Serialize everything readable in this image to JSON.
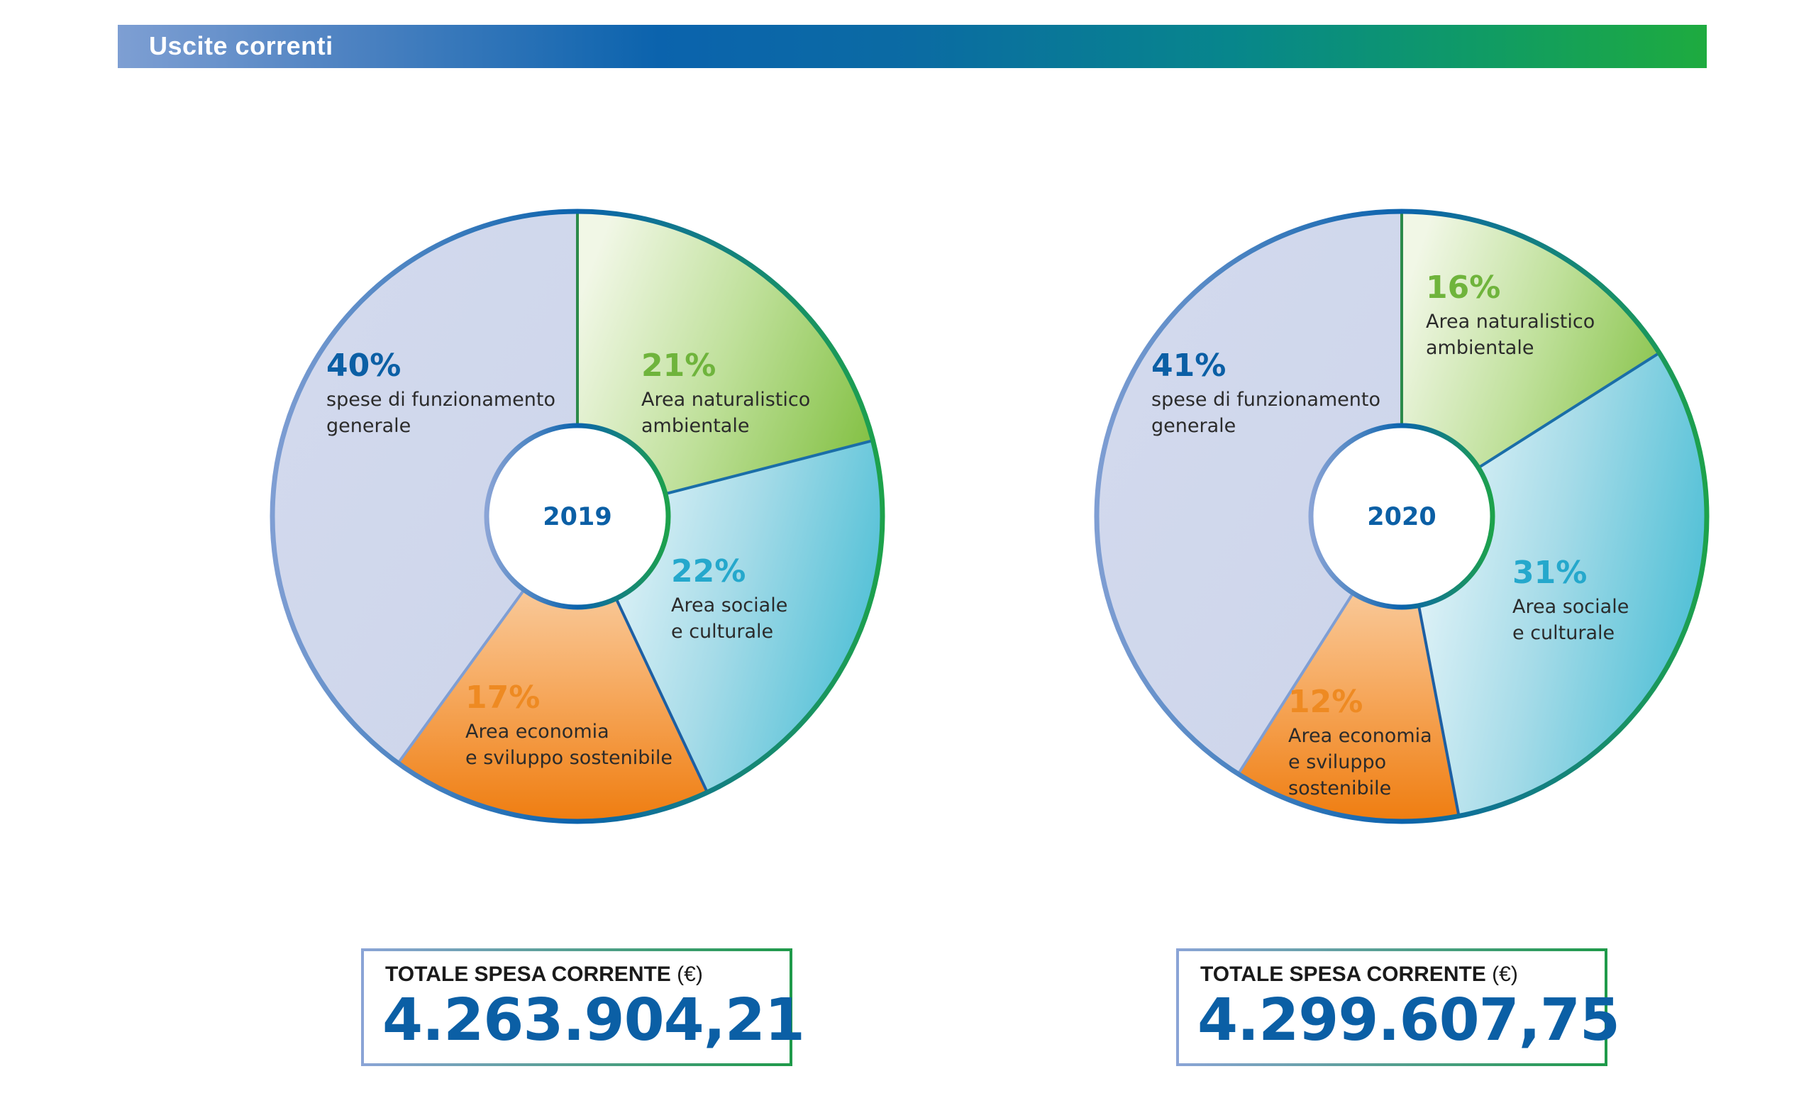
{
  "header": {
    "title": "Uscite correnti"
  },
  "colors": {
    "generale": "#d1d8ec",
    "naturalistico": "#8dc54c",
    "sociale": "#52c0d6",
    "economia": "#f08419",
    "pct_generale": "#0b5fa5",
    "pct_naturalistico": "#6fb43c",
    "pct_sociale": "#25a8cc",
    "pct_economia": "#ee8a22",
    "ring_start": "#7f9ed3",
    "ring_end": "#1da24b"
  },
  "chart_data": [
    {
      "type": "pie",
      "title": "2019",
      "center_label": "2019",
      "slices": [
        {
          "key": "naturalistico",
          "value": 21,
          "pct": "21%",
          "lines": [
            "Area naturalistico",
            "ambientale"
          ]
        },
        {
          "key": "sociale",
          "value": 22,
          "pct": "22%",
          "lines": [
            "Area sociale",
            "e culturale"
          ]
        },
        {
          "key": "economia",
          "value": 17,
          "pct": "17%",
          "lines": [
            "Area economia",
            "e sviluppo sostenibile"
          ]
        },
        {
          "key": "generale",
          "value": 40,
          "pct": "40%",
          "lines": [
            "spese di funzionamento",
            "generale"
          ]
        }
      ],
      "total_label": "TOTALE SPESA CORRENTE",
      "total_unit": "(€)",
      "total_value": "4.263.904,21"
    },
    {
      "type": "pie",
      "title": "2020",
      "center_label": "2020",
      "slices": [
        {
          "key": "naturalistico",
          "value": 16,
          "pct": "16%",
          "lines": [
            "Area naturalistico",
            "ambientale"
          ]
        },
        {
          "key": "sociale",
          "value": 31,
          "pct": "31%",
          "lines": [
            "Area sociale",
            "e culturale"
          ]
        },
        {
          "key": "economia",
          "value": 12,
          "pct": "12%",
          "lines": [
            "Area economia",
            "e sviluppo",
            "sostenibile"
          ]
        },
        {
          "key": "generale",
          "value": 41,
          "pct": "41%",
          "lines": [
            "spese di funzionamento",
            "generale"
          ]
        }
      ],
      "total_label": "TOTALE SPESA CORRENTE",
      "total_unit": "(€)",
      "total_value": "4.299.607,75"
    }
  ]
}
